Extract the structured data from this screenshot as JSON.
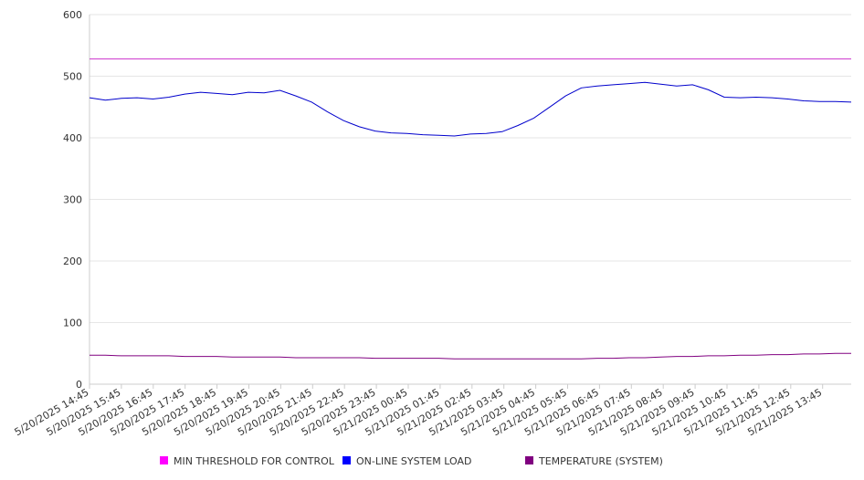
{
  "chart_data": {
    "type": "line",
    "title": "",
    "xlabel": "",
    "ylabel": "",
    "ylim": [
      0,
      600
    ],
    "yticks": [
      0,
      100,
      200,
      300,
      400,
      500,
      600
    ],
    "grid": "horizontal",
    "legend_position": "bottom",
    "xtick_labels": [
      "5/20/2025 14:45",
      "5/20/2025 15:45",
      "5/20/2025 16:45",
      "5/20/2025 17:45",
      "5/20/2025 18:45",
      "5/20/2025 19:45",
      "5/20/2025 20:45",
      "5/20/2025 21:45",
      "5/20/2025 22:45",
      "5/20/2025 23:45",
      "5/21/2025 00:45",
      "5/21/2025 01:45",
      "5/21/2025 02:45",
      "5/21/2025 03:45",
      "5/21/2025 04:45",
      "5/21/2025 05:45",
      "5/21/2025 06:45",
      "5/21/2025 07:45",
      "5/21/2025 08:45",
      "5/21/2025 09:45",
      "5/21/2025 10:45",
      "5/21/2025 11:45",
      "5/21/2025 12:45",
      "5/21/2025 13:45"
    ],
    "x": [
      "5/20/2025 14:45",
      "5/20/2025 15:15",
      "5/20/2025 15:45",
      "5/20/2025 16:15",
      "5/20/2025 16:45",
      "5/20/2025 17:15",
      "5/20/2025 17:45",
      "5/20/2025 18:15",
      "5/20/2025 18:45",
      "5/20/2025 19:15",
      "5/20/2025 19:45",
      "5/20/2025 20:15",
      "5/20/2025 20:45",
      "5/20/2025 21:15",
      "5/20/2025 21:45",
      "5/20/2025 22:15",
      "5/20/2025 22:45",
      "5/20/2025 23:15",
      "5/20/2025 23:45",
      "5/21/2025 00:15",
      "5/21/2025 00:45",
      "5/21/2025 01:15",
      "5/21/2025 01:45",
      "5/21/2025 02:15",
      "5/21/2025 02:45",
      "5/21/2025 03:15",
      "5/21/2025 03:45",
      "5/21/2025 04:15",
      "5/21/2025 04:45",
      "5/21/2025 05:15",
      "5/21/2025 05:45",
      "5/21/2025 06:15",
      "5/21/2025 06:45",
      "5/21/2025 07:15",
      "5/21/2025 07:45",
      "5/21/2025 08:15",
      "5/21/2025 08:45",
      "5/21/2025 09:15",
      "5/21/2025 09:45",
      "5/21/2025 10:15",
      "5/21/2025 10:45",
      "5/21/2025 11:15",
      "5/21/2025 11:45",
      "5/21/2025 12:15",
      "5/21/2025 12:45",
      "5/21/2025 13:15",
      "5/21/2025 13:45",
      "5/21/2025 14:15",
      "5/21/2025 14:30"
    ],
    "series": [
      {
        "name": "MIN THRESHOLD FOR CONTROL",
        "color": "#cc33cc",
        "legend_color": "#ff00ff",
        "values": [
          528,
          528,
          528,
          528,
          528,
          528,
          528,
          528,
          528,
          528,
          528,
          528,
          528,
          528,
          528,
          528,
          528,
          528,
          528,
          528,
          528,
          528,
          528,
          528,
          528,
          528,
          528,
          528,
          528,
          528,
          528,
          528,
          528,
          528,
          528,
          528,
          528,
          528,
          528,
          528,
          528,
          528,
          528,
          528,
          528,
          528,
          528,
          528,
          528
        ]
      },
      {
        "name": "ON-LINE SYSTEM LOAD",
        "color": "#0000cc",
        "legend_color": "#0000ff",
        "values": [
          465,
          461,
          464,
          465,
          463,
          466,
          471,
          474,
          472,
          470,
          474,
          473,
          477,
          468,
          458,
          442,
          428,
          418,
          411,
          408,
          407,
          405,
          404,
          403,
          406,
          407,
          410,
          420,
          432,
          450,
          468,
          481,
          484,
          486,
          488,
          490,
          487,
          484,
          486,
          478,
          466,
          465,
          466,
          465,
          463,
          460,
          459,
          459,
          458
        ]
      },
      {
        "name": "TEMPERATURE (SYSTEM)",
        "color": "#800080",
        "legend_color": "#800080",
        "values": [
          47,
          47,
          46,
          46,
          46,
          46,
          45,
          45,
          45,
          44,
          44,
          44,
          44,
          43,
          43,
          43,
          43,
          43,
          42,
          42,
          42,
          42,
          42,
          41,
          41,
          41,
          41,
          41,
          41,
          41,
          41,
          41,
          42,
          42,
          43,
          43,
          44,
          45,
          45,
          46,
          46,
          47,
          47,
          48,
          48,
          49,
          49,
          50,
          50
        ]
      }
    ]
  }
}
